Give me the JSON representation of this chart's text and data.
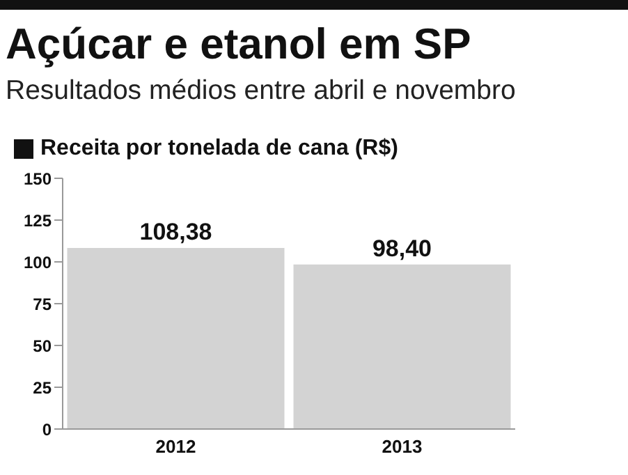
{
  "chart_data": {
    "type": "bar",
    "title": "Açúcar e etanol em SP",
    "subtitle": "Resultados médios entre abril e novembro",
    "ylabel": "Receita por tonelada de cana (R$)",
    "categories": [
      "2012",
      "2013"
    ],
    "values": [
      108.38,
      98.4
    ],
    "color": "#d3d3d3",
    "value_labels": [
      "108,38",
      "98,40"
    ],
    "ylim": [
      0,
      150
    ],
    "yticks": [
      0,
      25,
      50,
      75,
      100,
      125,
      150
    ],
    "grid": false
  }
}
